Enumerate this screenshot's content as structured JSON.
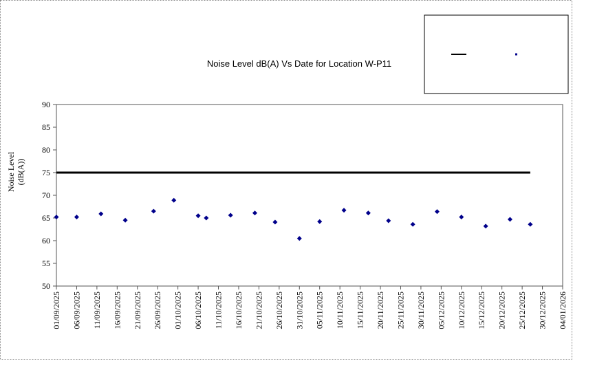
{
  "chart_data": {
    "type": "scatter",
    "title": "Noise Level dB(A) Vs Date for Location W-P11",
    "ylabel": [
      "Noise Level",
      "(dB(A))"
    ],
    "ylim": [
      50,
      90
    ],
    "yticks": [
      50,
      55,
      60,
      65,
      70,
      75,
      80,
      85,
      90
    ],
    "xlim": [
      "01/09/2025",
      "04/01/2026"
    ],
    "xticks": [
      "01/09/2025",
      "06/09/2025",
      "11/09/2025",
      "16/09/2025",
      "21/09/2025",
      "26/09/2025",
      "01/10/2025",
      "06/10/2025",
      "11/10/2025",
      "16/10/2025",
      "21/10/2025",
      "26/10/2025",
      "31/10/2025",
      "05/11/2025",
      "10/11/2025",
      "15/11/2025",
      "20/11/2025",
      "25/11/2025",
      "30/11/2025",
      "05/12/2025",
      "10/12/2025",
      "15/12/2025",
      "20/12/2025",
      "25/12/2025",
      "30/12/2025",
      "04/01/2026"
    ],
    "series": [
      {
        "style": "line",
        "color": "#000000",
        "x": [
          "01/09/2025",
          "27/12/2025"
        ],
        "values": [
          75,
          75
        ]
      },
      {
        "style": "marker",
        "color": "#00008b",
        "x": [
          "01/09/2025",
          "06/09/2025",
          "12/09/2025",
          "18/09/2025",
          "25/09/2025",
          "30/09/2025",
          "06/10/2025",
          "08/10/2025",
          "14/10/2025",
          "20/10/2025",
          "25/10/2025",
          "31/10/2025",
          "05/11/2025",
          "11/11/2025",
          "17/11/2025",
          "22/11/2025",
          "28/11/2025",
          "04/12/2025",
          "10/12/2025",
          "16/12/2025",
          "22/12/2025",
          "27/12/2025"
        ],
        "values": [
          65.2,
          65.2,
          65.9,
          64.5,
          66.5,
          68.9,
          65.5,
          65.0,
          65.6,
          66.1,
          64.1,
          60.5,
          64.2,
          66.7,
          66.1,
          64.4,
          63.6,
          66.4,
          65.2,
          63.2,
          64.7,
          63.6
        ]
      }
    ]
  }
}
